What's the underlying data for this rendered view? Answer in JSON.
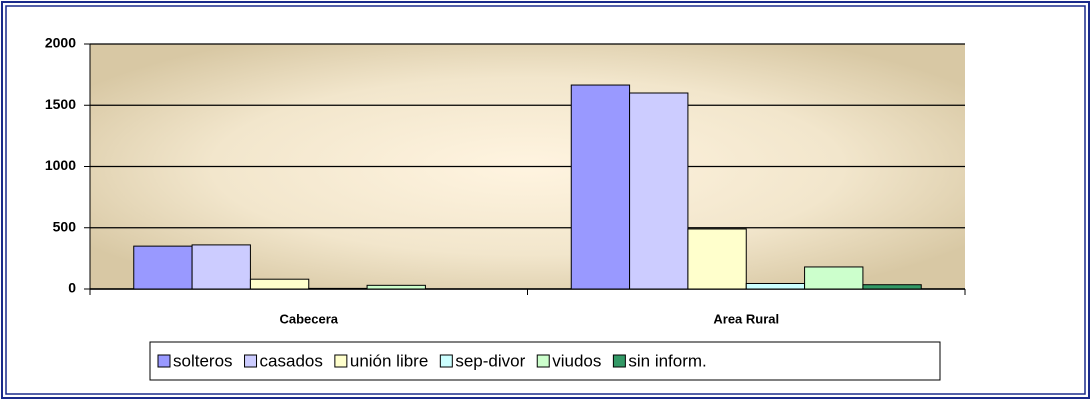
{
  "chart_data": {
    "type": "bar",
    "categories": [
      "Cabecera",
      "Area Rural"
    ],
    "series": [
      {
        "name": "solteros",
        "color": "#9999ff",
        "values": [
          350,
          1665
        ]
      },
      {
        "name": "casados",
        "color": "#ccccff",
        "values": [
          360,
          1600
        ]
      },
      {
        "name": "unión libre",
        "color": "#ffffcc",
        "values": [
          80,
          490
        ]
      },
      {
        "name": "sep-divor",
        "color": "#ccffff",
        "values": [
          5,
          45
        ]
      },
      {
        "name": "viudos",
        "color": "#ccffcc",
        "values": [
          30,
          180
        ]
      },
      {
        "name": "sin inform.",
        "color": "#339966",
        "values": [
          0,
          35
        ]
      }
    ],
    "ylim": [
      0,
      2000
    ],
    "yticks": [
      0,
      500,
      1000,
      1500,
      2000
    ],
    "grid": true,
    "legend": "bottom"
  }
}
